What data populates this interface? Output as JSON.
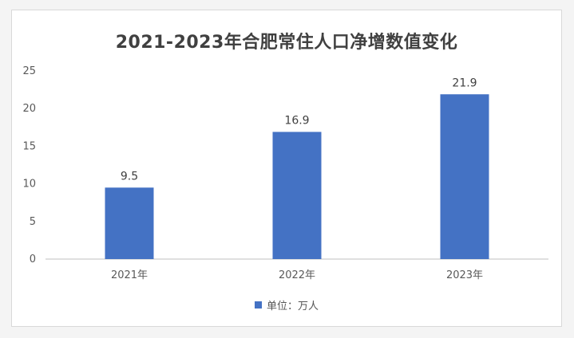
{
  "chart_data": {
    "type": "bar",
    "title": "2021-2023年合肥常住人口净增数值变化",
    "categories": [
      "2021年",
      "2022年",
      "2023年"
    ],
    "series": [
      {
        "name": "单位：万人",
        "values": [
          9.5,
          16.9,
          21.9
        ]
      }
    ],
    "ylim": [
      0,
      25
    ],
    "yticks": [
      0,
      5,
      10,
      15,
      20,
      25
    ],
    "grid": false,
    "legend_position": "bottom",
    "bar_color": "#4472c4",
    "data_labels": [
      "9.5",
      "16.9",
      "21.9"
    ]
  }
}
